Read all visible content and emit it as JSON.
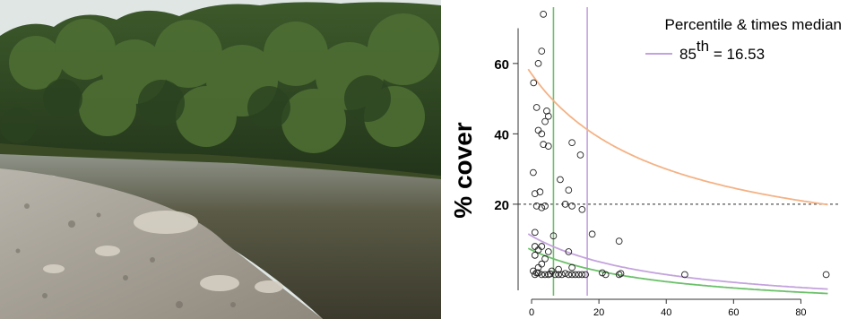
{
  "photo": {
    "alt": "river scene",
    "colors": {
      "sky": "#dfe6e4",
      "forest_dark": "#24381c",
      "forest": "#3f5a2a",
      "water": "#4a4a3a",
      "gravel": "#9b958c"
    }
  },
  "chart_data": {
    "type": "scatter",
    "title": "",
    "ylabel": "% cover",
    "xlabel": "",
    "xlim": [
      -4,
      90
    ],
    "ylim": [
      -6,
      76
    ],
    "xticks": [
      "0",
      "20",
      "40",
      "60",
      "80"
    ],
    "xtick_values": [
      0,
      20,
      40,
      60,
      80
    ],
    "yticks": [
      "20",
      "40",
      "60"
    ],
    "ytick_values": [
      20,
      40,
      60
    ],
    "legend": {
      "heading": "Percentile & times median",
      "entries": [
        {
          "label_base": "85",
          "label_sup": "th",
          "label_rest": " = 16.53",
          "color": "#c4a3dd"
        }
      ]
    },
    "reference_lines": {
      "horizontal_dashed_y": 20,
      "vertical": [
        {
          "x": 6.5,
          "color": "#6cc06a"
        },
        {
          "x": 16.53,
          "color": "#c4a3dd"
        }
      ]
    },
    "curves": [
      {
        "name": "orange",
        "color": "#f4b285",
        "k": 2160
      },
      {
        "name": "purple",
        "color": "#c4a3dd",
        "k": 880
      },
      {
        "name": "green",
        "color": "#6cc06a",
        "k": 720
      }
    ],
    "points": [
      [
        3.5,
        74
      ],
      [
        3,
        63.5
      ],
      [
        2,
        60
      ],
      [
        0.6,
        54.5
      ],
      [
        1.5,
        47.5
      ],
      [
        4.5,
        46.5
      ],
      [
        5,
        45
      ],
      [
        4,
        43.5
      ],
      [
        2,
        41
      ],
      [
        3,
        40
      ],
      [
        3.5,
        37
      ],
      [
        5,
        36.5
      ],
      [
        12,
        37.5
      ],
      [
        14.5,
        34
      ],
      [
        0.5,
        29
      ],
      [
        8.5,
        27
      ],
      [
        11,
        24
      ],
      [
        2.5,
        23.5
      ],
      [
        1,
        23
      ],
      [
        10,
        20
      ],
      [
        12,
        19.5
      ],
      [
        1.5,
        19.5
      ],
      [
        4,
        19.5
      ],
      [
        3,
        19
      ],
      [
        15,
        18.5
      ],
      [
        1,
        12
      ],
      [
        6.5,
        11
      ],
      [
        18,
        11.5
      ],
      [
        26,
        9.5
      ],
      [
        1,
        8
      ],
      [
        3,
        8
      ],
      [
        2,
        7
      ],
      [
        5,
        6.5
      ],
      [
        1,
        5.5
      ],
      [
        11,
        6.5
      ],
      [
        4,
        4.5
      ],
      [
        3,
        3
      ],
      [
        12,
        2
      ],
      [
        2,
        2
      ],
      [
        8,
        1.5
      ],
      [
        0.5,
        1
      ],
      [
        1.5,
        0.5
      ],
      [
        3,
        0
      ],
      [
        5,
        0
      ],
      [
        6,
        1
      ],
      [
        7,
        0
      ],
      [
        8,
        0
      ],
      [
        9,
        0
      ],
      [
        10,
        0.3
      ],
      [
        11,
        0
      ],
      [
        12,
        0
      ],
      [
        13,
        0
      ],
      [
        14,
        0
      ],
      [
        15,
        0
      ],
      [
        16,
        0
      ],
      [
        1,
        0
      ],
      [
        2,
        0.5
      ],
      [
        4,
        0
      ],
      [
        5.5,
        0.2
      ],
      [
        21,
        0.5
      ],
      [
        22,
        0
      ],
      [
        26,
        0
      ],
      [
        26.5,
        0.3
      ],
      [
        45.5,
        0
      ],
      [
        87.5,
        0
      ]
    ]
  }
}
